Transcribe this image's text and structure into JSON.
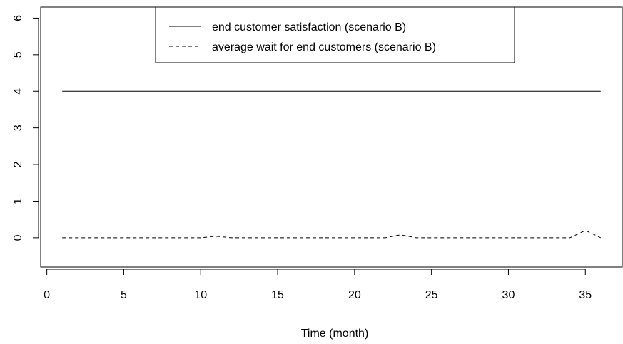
{
  "chart_data": {
    "type": "line",
    "title": "",
    "xlabel": "Time (month)",
    "ylabel": "",
    "xlim": [
      -0.4,
      37.4
    ],
    "ylim": [
      -0.8,
      6.3
    ],
    "xticks": [
      0,
      5,
      10,
      15,
      20,
      25,
      30,
      35
    ],
    "yticks": [
      0,
      1,
      2,
      3,
      4,
      5,
      6
    ],
    "grid": false,
    "legend": {
      "placement": "top-center"
    },
    "series": [
      {
        "name": "end customer satisfaction (scenario B)",
        "style": "solid",
        "color": "#000000",
        "x": [
          1,
          36
        ],
        "y": [
          4,
          4
        ]
      },
      {
        "name": "average wait for end customers (scenario B)",
        "style": "dashed",
        "color": "#000000",
        "x": [
          1,
          2,
          3,
          4,
          5,
          6,
          7,
          8,
          9,
          10,
          11,
          12,
          13,
          14,
          15,
          16,
          17,
          18,
          19,
          20,
          21,
          22,
          23,
          24,
          25,
          26,
          27,
          28,
          29,
          30,
          31,
          32,
          33,
          34,
          35,
          36
        ],
        "y": [
          0,
          0,
          0,
          0,
          0,
          0,
          0,
          0,
          0,
          0,
          0.04,
          0,
          0,
          0,
          0,
          0,
          0,
          0,
          0,
          0,
          0,
          0,
          0.08,
          0,
          0,
          0,
          0,
          0,
          0,
          0,
          0,
          0,
          0,
          0,
          0.2,
          0
        ]
      }
    ]
  }
}
